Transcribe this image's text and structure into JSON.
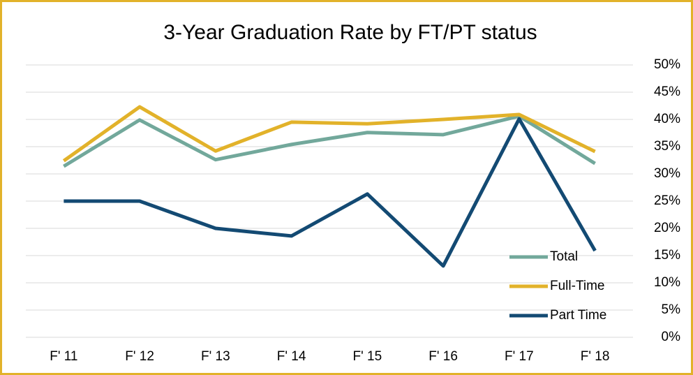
{
  "chart_data": {
    "type": "line",
    "title": "3-Year Graduation Rate by FT/PT status",
    "categories": [
      "F' 11",
      "F' 12",
      "F' 13",
      "F' 14",
      "F' 15",
      "F' 16",
      "F' 17",
      "F' 18"
    ],
    "series": [
      {
        "name": "Total",
        "color": "#72a89b",
        "values": [
          31.4,
          39.9,
          32.6,
          35.4,
          37.6,
          37.2,
          40.6,
          31.9
        ]
      },
      {
        "name": "Full-Time",
        "color": "#e2b22a",
        "values": [
          32.4,
          42.3,
          34.2,
          39.5,
          39.2,
          40.0,
          40.9,
          34.1
        ]
      },
      {
        "name": "Part Time",
        "color": "#134a73",
        "values": [
          25.0,
          25.0,
          20.0,
          18.6,
          26.3,
          13.1,
          40.1,
          15.9
        ]
      }
    ],
    "ylim": [
      0,
      50
    ],
    "yticks": [
      {
        "value": 0,
        "label": "0%"
      },
      {
        "value": 5,
        "label": "5%"
      },
      {
        "value": 10,
        "label": "10%"
      },
      {
        "value": 15,
        "label": "15%"
      },
      {
        "value": 20,
        "label": "20%"
      },
      {
        "value": 25,
        "label": "25%"
      },
      {
        "value": 30,
        "label": "30%"
      },
      {
        "value": 35,
        "label": "35%"
      },
      {
        "value": 40,
        "label": "40%"
      },
      {
        "value": 45,
        "label": "45%"
      },
      {
        "value": 50,
        "label": "50%"
      }
    ],
    "grid": true,
    "legend": "lower right"
  }
}
